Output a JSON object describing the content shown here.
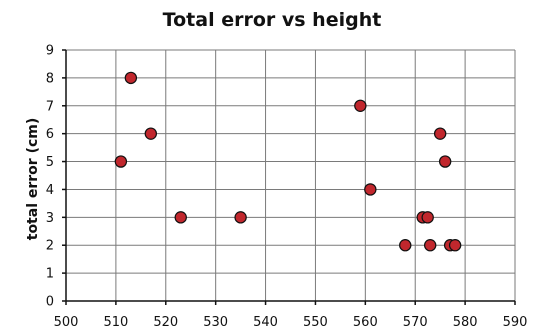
{
  "chart_data": {
    "type": "scatter",
    "title": "Total error vs height",
    "xlabel": "",
    "ylabel": "total error (cm)",
    "xlim": [
      500,
      590
    ],
    "ylim": [
      0,
      9
    ],
    "x_ticks": [
      "500",
      "510",
      "520",
      "530",
      "540",
      "550",
      "560",
      "570",
      "580",
      "590"
    ],
    "y_ticks": [
      "0",
      "1",
      "2",
      "3",
      "4",
      "5",
      "6",
      "7",
      "8",
      "9"
    ],
    "grid": true,
    "marker_color": "#c1272d",
    "points": [
      {
        "x": 511,
        "y": 5
      },
      {
        "x": 513,
        "y": 8
      },
      {
        "x": 517,
        "y": 6
      },
      {
        "x": 523,
        "y": 3
      },
      {
        "x": 535,
        "y": 3
      },
      {
        "x": 559,
        "y": 7
      },
      {
        "x": 561,
        "y": 4
      },
      {
        "x": 568,
        "y": 2
      },
      {
        "x": 571.5,
        "y": 3
      },
      {
        "x": 572.5,
        "y": 3
      },
      {
        "x": 573,
        "y": 2
      },
      {
        "x": 575,
        "y": 6
      },
      {
        "x": 576,
        "y": 5
      },
      {
        "x": 577,
        "y": 2
      },
      {
        "x": 578,
        "y": 2
      }
    ]
  }
}
